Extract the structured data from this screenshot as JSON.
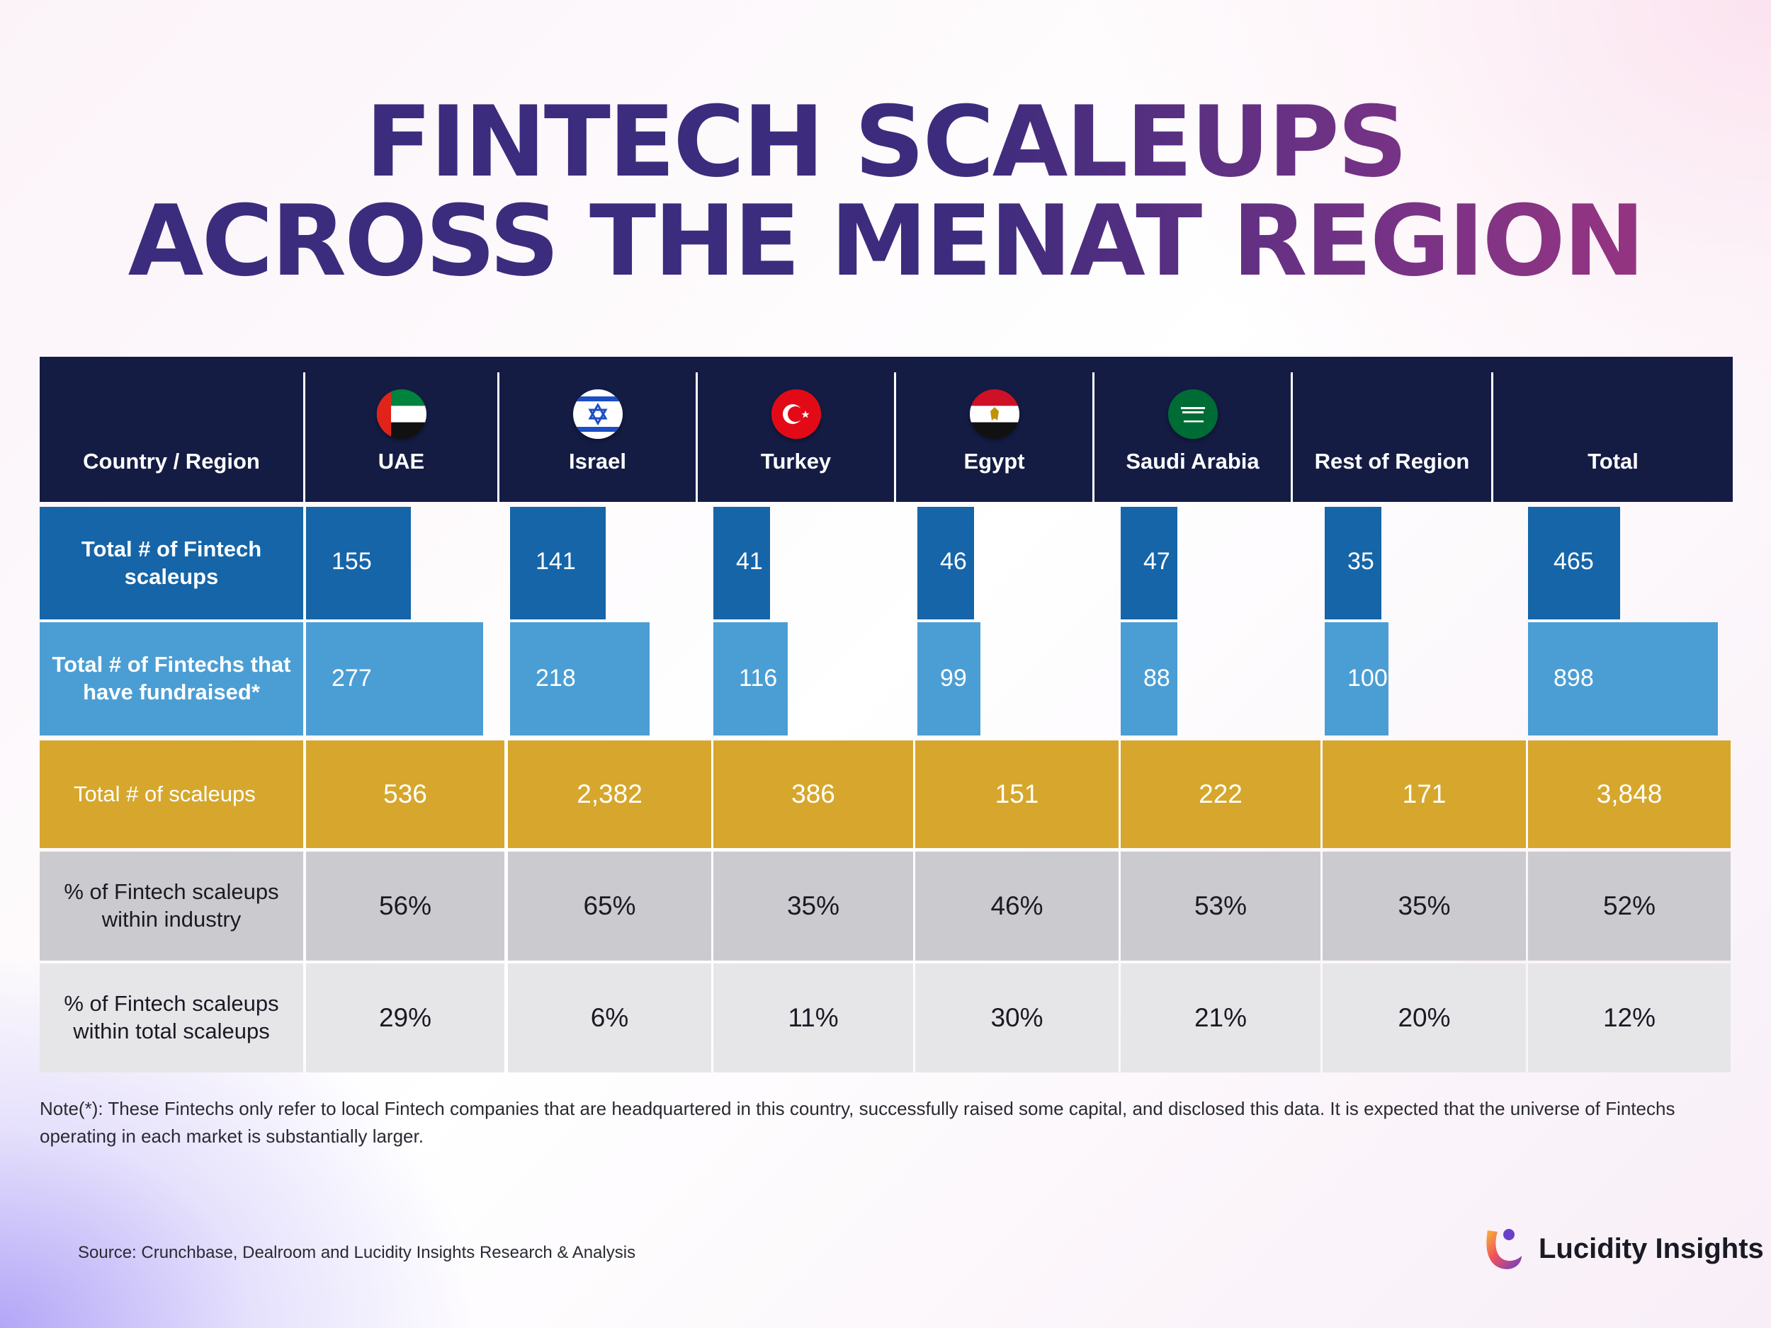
{
  "title": {
    "line1": "FINTECH SCALEUPS",
    "line2": "ACROSS THE MENAT REGION"
  },
  "header": {
    "row_label": "Country / Region",
    "columns": [
      {
        "label": "UAE",
        "flag_icon": "uae-flag-icon"
      },
      {
        "label": "Israel",
        "flag_icon": "israel-flag-icon"
      },
      {
        "label": "Turkey",
        "flag_icon": "turkey-flag-icon"
      },
      {
        "label": "Egypt",
        "flag_icon": "egypt-flag-icon"
      },
      {
        "label": "Saudi Arabia",
        "flag_icon": "saudi-arabia-flag-icon"
      },
      {
        "label": "Rest of Region",
        "flag_icon": ""
      },
      {
        "label": "Total",
        "flag_icon": ""
      }
    ]
  },
  "chart_data": {
    "type": "table",
    "categories": [
      "UAE",
      "Israel",
      "Turkey",
      "Egypt",
      "Saudi Arabia",
      "Rest of Region",
      "Total"
    ],
    "rows": [
      {
        "label": "Total # of Fintech scaleups",
        "values": [
          155,
          141,
          41,
          46,
          47,
          35,
          465
        ],
        "display": [
          "155",
          "141",
          "41",
          "46",
          "47",
          "35",
          "465"
        ],
        "style": "bar",
        "color": "#1565a8"
      },
      {
        "label": "Total # of Fintechs that have fundraised*",
        "values": [
          277,
          218,
          116,
          99,
          88,
          100,
          898
        ],
        "display": [
          "277",
          "218",
          "116",
          "99",
          "88",
          "100",
          "898"
        ],
        "style": "bar",
        "color": "#4b9ed4"
      },
      {
        "label": "Total # of scaleups",
        "values": [
          536,
          2382,
          386,
          151,
          222,
          171,
          3848
        ],
        "display": [
          "536",
          "2,382",
          "386",
          "151",
          "222",
          "171",
          "3,848"
        ],
        "style": "cell",
        "color": "#d6a72c"
      },
      {
        "label": "% of Fintech scaleups within industry",
        "values": [
          56,
          65,
          35,
          46,
          53,
          35,
          52
        ],
        "display": [
          "56%",
          "65%",
          "35%",
          "46%",
          "53%",
          "35%",
          "52%"
        ],
        "style": "cell",
        "color": "#cbcbcf"
      },
      {
        "label": "% of Fintech scaleups within total scaleups",
        "values": [
          29,
          6,
          11,
          30,
          21,
          20,
          12
        ],
        "display": [
          "29%",
          "6%",
          "11%",
          "30%",
          "21%",
          "20%",
          "12%"
        ],
        "style": "cell",
        "color": "#e6e6e9"
      }
    ]
  },
  "note": "Note(*): These Fintechs only refer to local Fintech companies that are headquartered in this country, successfully raised some capital, and disclosed this data. It is expected that the universe of Fintechs operating in each market is substantially larger.",
  "source": "Source:  Crunchbase, Dealroom and Lucidity Insights Research & Analysis",
  "brand": {
    "name": "Lucidity Insights",
    "logo_icon": "lucidity-logo-icon"
  },
  "colors": {
    "header_bg": "#141c44",
    "title": "#3b2c7d",
    "title_accent": "#a5357e",
    "fintech_scaleups_bar": "#1565a8",
    "fundraised_bar": "#4b9ed4",
    "scaleups_cell": "#d6a72c"
  }
}
